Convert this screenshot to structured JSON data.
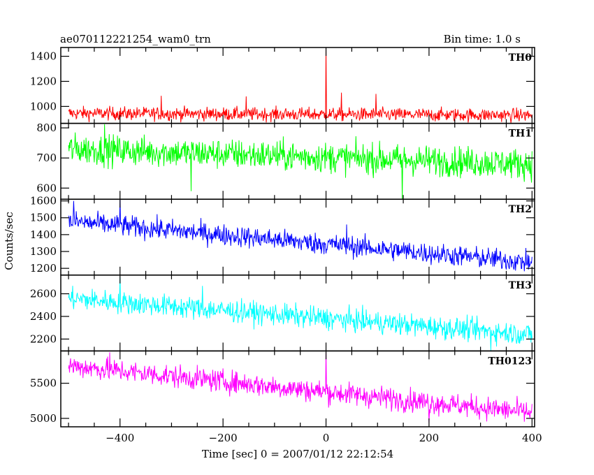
{
  "header": {
    "title": "ae070112221254_wam0_trn",
    "bin_time": "Bin time: 1.0 s"
  },
  "chart_data": {
    "type": "line",
    "xlabel": "Time [sec] 0 = 2007/01/12 22:12:54",
    "ylabel": "Counts/sec",
    "xlim": [
      -515,
      405
    ],
    "xticks": [
      -400,
      -200,
      0,
      200,
      400
    ],
    "series": [
      {
        "name": "TH0",
        "color": "#ff0000",
        "ylim": [
          865,
          1470
        ],
        "yticks": [
          1000,
          1200,
          1400
        ],
        "start": 945,
        "end": 930,
        "noise": 38,
        "spikes": [
          {
            "x": 0,
            "y": 1470
          },
          {
            "x": 30,
            "y": 1110
          },
          {
            "x": 97,
            "y": 1100
          },
          {
            "x": -155,
            "y": 1080
          },
          {
            "x": -320,
            "y": 1085
          }
        ]
      },
      {
        "name": "TH1",
        "color": "#00ff00",
        "ylim": [
          563,
          815
        ],
        "yticks": [
          600,
          700,
          800
        ],
        "start": 730,
        "end": 680,
        "noise": 36,
        "spikes": [
          {
            "x": 148,
            "y": 563
          },
          {
            "x": -262,
            "y": 590
          },
          {
            "x": -430,
            "y": 812
          }
        ]
      },
      {
        "name": "TH2",
        "color": "#0000ff",
        "ylim": [
          1160,
          1610
        ],
        "yticks": [
          1200,
          1300,
          1400,
          1500,
          1600
        ],
        "start": 1480,
        "end": 1235,
        "noise": 45,
        "spikes": [
          {
            "x": -400,
            "y": 1610
          },
          {
            "x": -490,
            "y": 1600
          },
          {
            "x": 40,
            "y": 1460
          }
        ]
      },
      {
        "name": "TH3",
        "color": "#00ffff",
        "ylim": [
          2095,
          2765
        ],
        "yticks": [
          2200,
          2400,
          2600
        ],
        "start": 2560,
        "end": 2240,
        "noise": 70,
        "spikes": [
          {
            "x": -400,
            "y": 2745
          },
          {
            "x": -240,
            "y": 2670
          },
          {
            "x": 320,
            "y": 2100
          }
        ]
      },
      {
        "name": "TH0123",
        "color": "#ff00ff",
        "ylim": [
          4880,
          5960
        ],
        "yticks": [
          5000,
          5500
        ],
        "start": 5750,
        "end": 5080,
        "noise": 115,
        "spikes": [
          {
            "x": 0,
            "y": 5960
          },
          {
            "x": -420,
            "y": 5940
          },
          {
            "x": 200,
            "y": 4940
          }
        ]
      }
    ]
  }
}
